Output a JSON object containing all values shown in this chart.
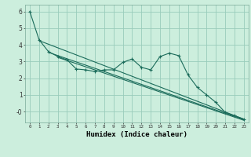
{
  "xlabel": "Humidex (Indice chaleur)",
  "bg_color": "#cceedd",
  "grid_color": "#99ccbb",
  "line_color": "#1a6b5a",
  "xlim": [
    -0.5,
    23.5
  ],
  "ylim": [
    -0.65,
    6.4
  ],
  "yticks": [
    0,
    1,
    2,
    3,
    4,
    5,
    6
  ],
  "ytick_labels": [
    "-0",
    "1",
    "2",
    "3",
    "4",
    "5",
    "6"
  ],
  "xticks": [
    0,
    1,
    2,
    3,
    4,
    5,
    6,
    7,
    8,
    9,
    10,
    11,
    12,
    13,
    14,
    15,
    16,
    17,
    18,
    19,
    20,
    21,
    22,
    23
  ],
  "data_line": [
    6.0,
    4.3,
    null,
    null,
    null,
    null,
    null,
    null,
    null,
    null,
    2.95,
    3.15,
    2.65,
    2.5,
    3.3,
    3.5,
    3.35,
    2.2,
    1.45,
    null,
    null,
    null,
    null,
    null
  ],
  "data_line_full": [
    6.0,
    4.3,
    3.6,
    3.3,
    3.1,
    2.55,
    2.5,
    2.4,
    2.5,
    2.5,
    2.95,
    3.15,
    2.65,
    2.5,
    3.3,
    3.5,
    3.35,
    2.2,
    1.45,
    1.0,
    0.55,
    -0.05,
    -0.25,
    -0.45
  ],
  "reg_lines": [
    {
      "x0": 1,
      "y0": 4.25,
      "x1": 23,
      "y1": -0.45
    },
    {
      "x0": 2,
      "y0": 3.55,
      "x1": 23,
      "y1": -0.48
    },
    {
      "x0": 3,
      "y0": 3.25,
      "x1": 23,
      "y1": -0.52
    }
  ]
}
